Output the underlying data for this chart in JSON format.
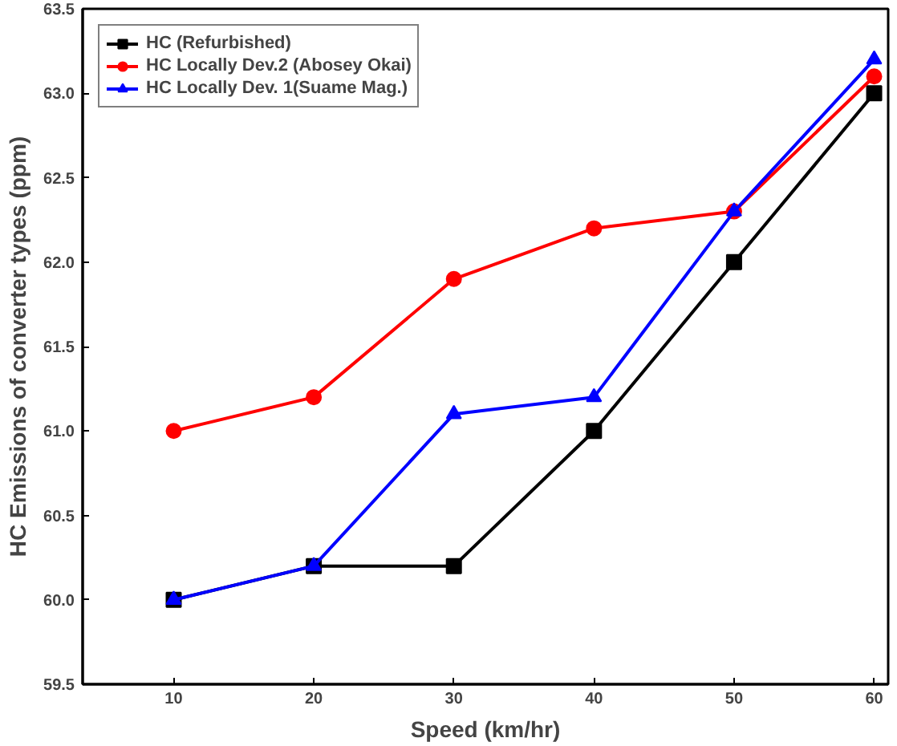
{
  "chart_data": {
    "type": "line",
    "xlabel": "Speed (km/hr)",
    "ylabel": "HC Emissions of converter types (ppm)",
    "x": [
      10,
      20,
      30,
      40,
      50,
      60
    ],
    "series": [
      {
        "name": "HC (Refurbished)",
        "color": "#000000",
        "marker": "square",
        "values": [
          60.0,
          60.2,
          60.2,
          61.0,
          62.0,
          63.0
        ]
      },
      {
        "name": "HC Locally Dev.2 (Abosey Okai)",
        "color": "#ff0000",
        "marker": "circle",
        "values": [
          61.0,
          61.2,
          61.9,
          62.2,
          62.3,
          63.1
        ]
      },
      {
        "name": "HC Locally Dev. 1(Suame Mag.)",
        "color": "#0000ff",
        "marker": "triangle",
        "values": [
          60.0,
          60.2,
          61.1,
          61.2,
          62.3,
          63.2
        ]
      }
    ],
    "xlim": [
      3.5,
      61
    ],
    "xticks": [
      10,
      20,
      30,
      40,
      50,
      60
    ],
    "ylim": [
      59.5,
      63.5
    ],
    "yticks": [
      {
        "value": 59.5,
        "label": "59.5"
      },
      {
        "value": 60.0,
        "label": "60.0"
      },
      {
        "value": 60.5,
        "label": "60.5"
      },
      {
        "value": 61.0,
        "label": "61.0"
      },
      {
        "value": 61.5,
        "label": "61.5"
      },
      {
        "value": 62.0,
        "label": "62.0"
      },
      {
        "value": 62.5,
        "label": "62.5"
      },
      {
        "value": 63.0,
        "label": "63.0"
      },
      {
        "value": 63.5,
        "label": "63.5"
      }
    ],
    "grid": false,
    "legend": "top left",
    "line_style": "solid"
  }
}
